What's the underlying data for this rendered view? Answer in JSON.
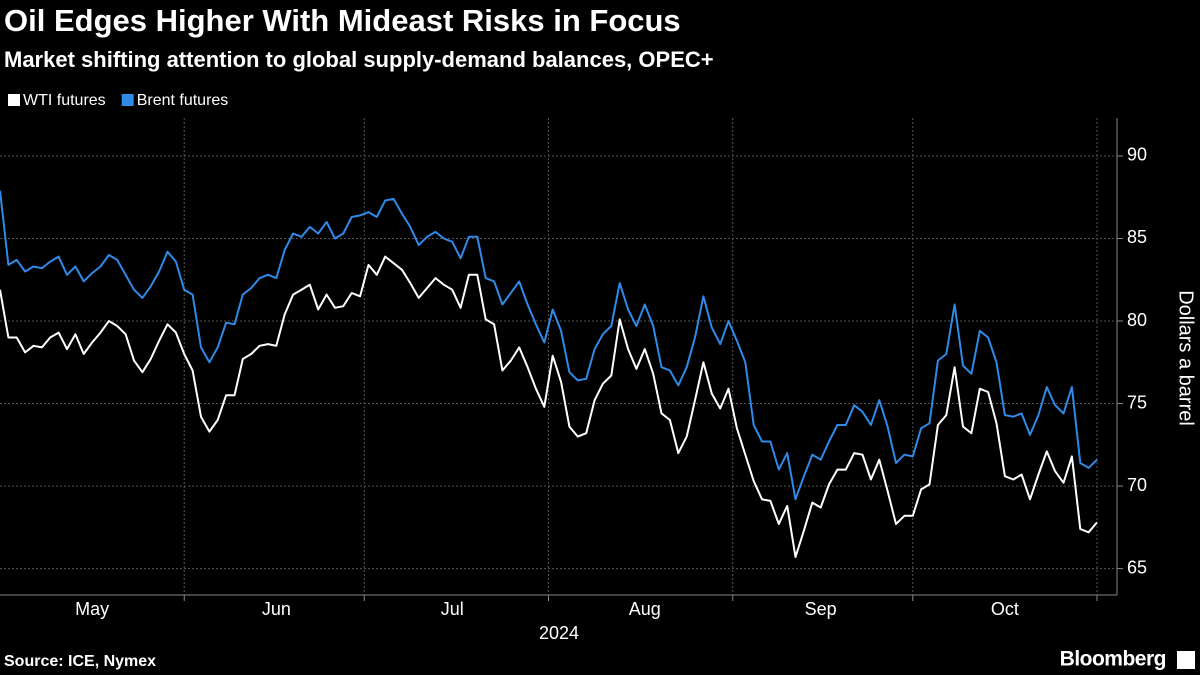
{
  "chart_data": {
    "type": "line",
    "title": "Oil Edges Higher With Mideast Risks in Focus",
    "subtitle": "Market shifting attention to global supply-demand balances, OPEC+",
    "xlabel": "2024",
    "ylabel": "Dollars a barrel",
    "source": "Source: ICE, Nymex",
    "brand": "Bloomberg",
    "categories": [
      null,
      null,
      null,
      null,
      null,
      null,
      null,
      null,
      null,
      null,
      null,
      "May",
      null,
      null,
      null,
      null,
      null,
      null,
      null,
      null,
      null,
      null,
      null,
      null,
      null,
      null,
      null,
      null,
      null,
      null,
      null,
      null,
      null,
      "Jun",
      null,
      null,
      null,
      null,
      null,
      null,
      null,
      null,
      null,
      null,
      null,
      null,
      null,
      null,
      null,
      null,
      null,
      null,
      null,
      null,
      "Jul",
      null,
      null,
      null,
      null,
      null,
      null,
      null,
      null,
      null,
      null,
      null,
      null,
      null,
      null,
      null,
      null,
      null,
      null,
      null,
      null,
      null,
      null,
      "Aug",
      null,
      null,
      null,
      null,
      null,
      null,
      null,
      null,
      null,
      null,
      null,
      null,
      null,
      null,
      null,
      null,
      null,
      null,
      null,
      null,
      "Sep",
      null,
      null,
      null,
      null,
      null,
      null,
      null,
      null,
      null,
      null,
      null,
      null,
      null,
      null,
      null,
      null,
      null,
      null,
      null,
      null,
      null,
      "Oct",
      null,
      null,
      null,
      null,
      null,
      null,
      null,
      null,
      null,
      null,
      null
    ],
    "series": [
      {
        "name": "WTI futures",
        "color": "#ffffff",
        "values": [
          81.9,
          79.0,
          79.0,
          78.1,
          78.5,
          78.4,
          79.0,
          79.3,
          78.3,
          79.2,
          78.0,
          78.7,
          79.3,
          80.0,
          79.7,
          79.2,
          77.6,
          76.9,
          77.7,
          78.8,
          79.8,
          79.3,
          78.0,
          77.0,
          74.2,
          73.3,
          74.0,
          75.5,
          75.5,
          77.7,
          78.0,
          78.5,
          78.6,
          78.5,
          80.4,
          81.6,
          81.9,
          82.2,
          80.7,
          81.6,
          80.8,
          80.9,
          81.7,
          81.5,
          83.4,
          82.8,
          83.9,
          83.5,
          83.1,
          82.3,
          81.4,
          82.0,
          82.6,
          82.2,
          81.9,
          80.8,
          82.8,
          82.8,
          80.1,
          79.8,
          77.0,
          77.6,
          78.4,
          77.2,
          75.9,
          74.8,
          77.9,
          76.3,
          73.6,
          73.0,
          73.2,
          75.2,
          76.2,
          76.7,
          80.1,
          78.3,
          77.1,
          78.3,
          76.8,
          74.4,
          74.0,
          72.0,
          73.0,
          75.2,
          77.5,
          75.6,
          74.7,
          75.9,
          73.5,
          71.9,
          70.3,
          69.2,
          69.1,
          67.7,
          68.8,
          65.7,
          67.3,
          69.0,
          68.7,
          70.1,
          71.0,
          71.0,
          72.0,
          71.9,
          70.4,
          71.6,
          69.7,
          67.7,
          68.2,
          68.2,
          69.8,
          70.1,
          73.7,
          74.3,
          77.2,
          73.6,
          73.2,
          75.9,
          75.7,
          73.8,
          70.6,
          70.4,
          70.7,
          69.2,
          70.7,
          72.1,
          70.9,
          70.2,
          71.8,
          67.4,
          67.2,
          67.8
        ]
      },
      {
        "name": "Brent futures",
        "color": "#2f8ae8",
        "values": [
          87.9,
          83.4,
          83.7,
          83.0,
          83.3,
          83.2,
          83.6,
          83.9,
          82.8,
          83.3,
          82.4,
          82.9,
          83.3,
          84.0,
          83.7,
          82.8,
          81.9,
          81.4,
          82.1,
          83.0,
          84.2,
          83.6,
          81.9,
          81.6,
          78.4,
          77.5,
          78.4,
          79.9,
          79.8,
          81.6,
          82.0,
          82.6,
          82.8,
          82.6,
          84.3,
          85.3,
          85.1,
          85.7,
          85.3,
          86.0,
          85.0,
          85.3,
          86.3,
          86.4,
          86.6,
          86.3,
          87.3,
          87.4,
          86.5,
          85.7,
          84.6,
          85.1,
          85.4,
          85.0,
          84.8,
          83.8,
          85.1,
          85.1,
          82.6,
          82.4,
          81.0,
          81.7,
          82.4,
          81.0,
          79.8,
          78.7,
          80.7,
          79.4,
          76.9,
          76.4,
          76.5,
          78.3,
          79.2,
          79.7,
          82.3,
          80.7,
          79.7,
          81.0,
          79.7,
          77.2,
          77.0,
          76.1,
          77.2,
          79.0,
          81.5,
          79.6,
          78.6,
          80.0,
          78.8,
          77.5,
          73.7,
          72.7,
          72.7,
          71.0,
          72.0,
          69.2,
          70.6,
          71.9,
          71.6,
          72.7,
          73.7,
          73.7,
          74.9,
          74.5,
          73.7,
          75.2,
          73.6,
          71.4,
          71.9,
          71.8,
          73.5,
          73.8,
          77.6,
          78.0,
          81.0,
          77.3,
          76.8,
          79.4,
          79.0,
          77.5,
          74.3,
          74.2,
          74.4,
          73.1,
          74.3,
          76.0,
          74.9,
          74.4,
          76.0,
          71.4,
          71.1,
          71.6
        ]
      }
    ],
    "ylim": [
      63.4,
      92.3
    ],
    "yticks": [
      65,
      70,
      75,
      80,
      85,
      90
    ],
    "grid": true
  }
}
